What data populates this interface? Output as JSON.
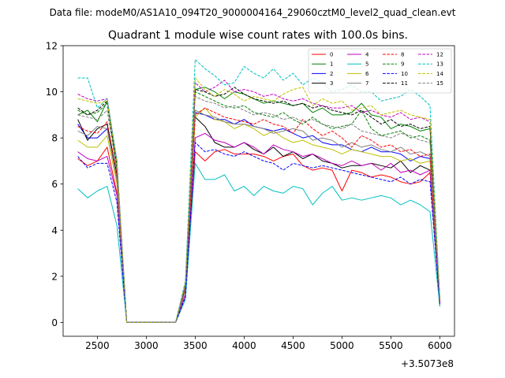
{
  "figure": {
    "suptitle": "Data file: modeM0/AS1A10_094T20_9000004164_29060cztM0_level2_quad_clean.evt"
  },
  "chart_data": {
    "type": "line",
    "title": "Quadrant 1 module wise count rates with 100.0s bins.",
    "xlabel": "",
    "ylabel": "",
    "x_offset_label": "+3.5073e8",
    "xlim": [
      2150,
      6150
    ],
    "ylim": [
      -0.6,
      12
    ],
    "xticks": [
      2500,
      3000,
      3500,
      4000,
      4500,
      5000,
      5500,
      6000
    ],
    "yticks": [
      0,
      2,
      4,
      6,
      8,
      10,
      12
    ],
    "grid": false,
    "legend": {
      "placement": "top-right",
      "columns": 4
    },
    "x": [
      2300,
      2400,
      2500,
      2600,
      2700,
      2800,
      2900,
      3000,
      3100,
      3200,
      3300,
      3400,
      3500,
      3600,
      3700,
      3800,
      3900,
      4000,
      4100,
      4200,
      4300,
      4400,
      4500,
      4600,
      4700,
      4800,
      4900,
      5000,
      5100,
      5200,
      5300,
      5400,
      5500,
      5600,
      5700,
      5800,
      5900,
      6000
    ],
    "series": [
      {
        "name": "0",
        "color": "#ff0000",
        "dash": "solid",
        "values": [
          7.1,
          6.8,
          7.0,
          7.6,
          5.6,
          0,
          0,
          0,
          0,
          0,
          0,
          1.2,
          7.4,
          7.0,
          7.4,
          7.5,
          7.3,
          7.3,
          7.3,
          7.2,
          7.0,
          7.2,
          7.3,
          6.8,
          6.6,
          6.7,
          6.6,
          5.7,
          6.6,
          6.5,
          6.3,
          6.4,
          6.3,
          6.1,
          6.0,
          6.1,
          6.5,
          0.7
        ]
      },
      {
        "name": "1",
        "color": "#008000",
        "dash": "solid",
        "values": [
          9.0,
          9.2,
          8.7,
          9.6,
          6.6,
          0,
          0,
          0,
          0,
          0,
          0,
          1.7,
          10.1,
          10.2,
          10.0,
          9.7,
          10.0,
          9.9,
          9.7,
          9.5,
          9.6,
          9.5,
          9.4,
          9.5,
          9.1,
          9.3,
          9.0,
          9.0,
          9.1,
          9.5,
          9.0,
          8.9,
          8.4,
          8.6,
          8.5,
          8.3,
          8.4,
          1.0
        ]
      },
      {
        "name": "2",
        "color": "#0000ff",
        "dash": "solid",
        "values": [
          8.6,
          8.0,
          8.0,
          8.4,
          6.2,
          0,
          0,
          0,
          0,
          0,
          0,
          1.5,
          9.1,
          9.0,
          8.8,
          8.8,
          8.6,
          8.8,
          8.5,
          8.4,
          8.3,
          8.4,
          8.2,
          8.0,
          8.1,
          7.8,
          7.7,
          7.7,
          7.5,
          7.4,
          7.6,
          7.4,
          7.4,
          7.3,
          7.0,
          7.2,
          7.1,
          0.9
        ]
      },
      {
        "name": "3",
        "color": "#000000",
        "dash": "solid",
        "values": [
          8.8,
          7.9,
          8.4,
          8.6,
          6.4,
          0,
          0,
          0,
          0,
          0,
          0,
          1.4,
          8.9,
          8.5,
          7.8,
          7.6,
          7.6,
          7.8,
          7.5,
          7.3,
          7.6,
          7.2,
          7.4,
          7.1,
          7.3,
          7.0,
          6.9,
          6.7,
          6.8,
          6.8,
          6.9,
          6.8,
          6.7,
          7.0,
          6.5,
          6.8,
          6.6,
          0.9
        ]
      },
      {
        "name": "4",
        "color": "#bf00bf",
        "dash": "solid",
        "values": [
          7.4,
          7.1,
          7.0,
          7.2,
          5.5,
          0,
          0,
          0,
          0,
          0,
          0,
          1.2,
          8.0,
          8.2,
          7.9,
          7.8,
          7.6,
          7.8,
          7.6,
          7.3,
          7.7,
          7.5,
          7.4,
          7.2,
          7.3,
          7.1,
          6.9,
          6.8,
          7.0,
          6.8,
          6.9,
          6.6,
          6.9,
          6.5,
          6.6,
          6.4,
          6.6,
          0.8
        ]
      },
      {
        "name": "5",
        "color": "#00bfbf",
        "dash": "solid",
        "values": [
          5.8,
          5.4,
          5.7,
          5.9,
          4.2,
          0,
          0,
          0,
          0,
          0,
          0,
          1.0,
          6.9,
          6.2,
          6.2,
          6.4,
          5.7,
          5.9,
          5.5,
          5.9,
          5.7,
          5.6,
          5.9,
          5.8,
          5.1,
          5.6,
          5.9,
          5.3,
          5.4,
          5.3,
          5.4,
          5.5,
          5.4,
          5.1,
          5.3,
          5.1,
          4.8,
          0.7
        ]
      },
      {
        "name": "6",
        "color": "#bfbf00",
        "dash": "solid",
        "values": [
          7.9,
          7.6,
          7.6,
          8.1,
          6.0,
          0,
          0,
          0,
          0,
          0,
          0,
          1.4,
          8.9,
          9.3,
          8.8,
          8.7,
          8.4,
          8.6,
          8.4,
          8.1,
          8.3,
          8.0,
          7.8,
          7.9,
          7.7,
          7.6,
          7.5,
          7.3,
          7.5,
          7.4,
          7.3,
          7.2,
          7.2,
          7.0,
          7.1,
          6.9,
          7.0,
          0.9
        ]
      },
      {
        "name": "7",
        "color": "#808080",
        "dash": "solid",
        "values": [
          8.3,
          8.1,
          8.5,
          8.4,
          6.2,
          0,
          0,
          0,
          0,
          0,
          0,
          1.4,
          9.2,
          9.0,
          8.9,
          8.7,
          8.6,
          8.6,
          8.5,
          8.4,
          8.2,
          8.3,
          8.4,
          8.3,
          7.9,
          8.0,
          7.9,
          7.6,
          7.8,
          7.6,
          7.7,
          7.5,
          7.4,
          7.6,
          7.3,
          7.4,
          7.2,
          0.9
        ]
      },
      {
        "name": "8",
        "color": "#ff0000",
        "dash": "dashed",
        "values": [
          8.5,
          8.3,
          8.2,
          8.7,
          6.4,
          0,
          0,
          0,
          0,
          0,
          0,
          1.5,
          9.0,
          9.3,
          9.1,
          8.9,
          8.8,
          8.7,
          8.6,
          8.8,
          8.6,
          8.5,
          8.2,
          8.8,
          8.4,
          8.1,
          8.3,
          8.0,
          7.6,
          8.1,
          7.9,
          7.6,
          7.7,
          7.4,
          7.5,
          7.2,
          7.3,
          0.9
        ]
      },
      {
        "name": "9",
        "color": "#008000",
        "dash": "dashed",
        "values": [
          9.2,
          9.0,
          9.1,
          9.5,
          6.8,
          0,
          0,
          0,
          0,
          0,
          0,
          1.6,
          10.0,
          9.8,
          9.6,
          9.4,
          9.3,
          9.4,
          9.1,
          9.0,
          8.9,
          9.1,
          8.8,
          8.6,
          8.9,
          8.6,
          8.4,
          8.5,
          8.6,
          9.2,
          8.4,
          8.1,
          8.2,
          8.3,
          8.0,
          8.1,
          7.9,
          1.0
        ]
      },
      {
        "name": "10",
        "color": "#0000ff",
        "dash": "dashed",
        "values": [
          7.2,
          6.7,
          6.9,
          6.9,
          5.2,
          0,
          0,
          0,
          0,
          0,
          0,
          1.1,
          7.8,
          7.4,
          7.5,
          7.3,
          7.2,
          7.4,
          7.2,
          7.0,
          6.9,
          6.6,
          6.9,
          6.8,
          6.7,
          6.8,
          6.7,
          6.6,
          6.5,
          6.4,
          6.3,
          6.2,
          6.1,
          6.3,
          6.0,
          6.2,
          6.1,
          0.8
        ]
      },
      {
        "name": "11",
        "color": "#000000",
        "dash": "dashed",
        "values": [
          9.3,
          9.0,
          9.2,
          9.6,
          6.8,
          0,
          0,
          0,
          0,
          0,
          0,
          1.6,
          10.1,
          10.0,
          9.8,
          9.9,
          10.2,
          9.9,
          9.7,
          9.6,
          9.5,
          9.6,
          9.4,
          9.5,
          9.3,
          9.4,
          9.2,
          9.1,
          9.0,
          9.2,
          8.9,
          8.6,
          8.8,
          8.5,
          8.6,
          8.4,
          8.5,
          1.0
        ]
      },
      {
        "name": "12",
        "color": "#bf00bf",
        "dash": "dashed",
        "values": [
          9.9,
          9.7,
          9.6,
          9.7,
          7.0,
          0,
          0,
          0,
          0,
          0,
          0,
          1.7,
          10.4,
          10.0,
          10.2,
          10.5,
          10.0,
          10.1,
          10.0,
          9.8,
          9.9,
          9.7,
          9.6,
          9.7,
          9.5,
          9.4,
          9.3,
          9.3,
          9.4,
          9.1,
          9.2,
          9.0,
          8.9,
          9.1,
          8.8,
          8.9,
          8.7,
          1.0
        ]
      },
      {
        "name": "13",
        "color": "#00bfbf",
        "dash": "dashed",
        "values": [
          10.6,
          10.6,
          9.3,
          9.7,
          7.0,
          0,
          0,
          0,
          0,
          0,
          0,
          1.8,
          11.4,
          11.0,
          10.7,
          10.3,
          10.4,
          11.1,
          10.8,
          10.6,
          11.0,
          10.5,
          10.8,
          10.3,
          10.6,
          10.4,
          10.0,
          10.1,
          10.3,
          10.0,
          10.0,
          9.6,
          9.7,
          9.8,
          10.1,
          9.8,
          9.4,
          1.0
        ]
      },
      {
        "name": "14",
        "color": "#bfbf00",
        "dash": "dashed",
        "values": [
          9.7,
          9.6,
          9.5,
          9.6,
          6.9,
          0,
          0,
          0,
          0,
          0,
          0,
          1.7,
          10.6,
          10.1,
          9.8,
          10.1,
          9.9,
          9.6,
          9.8,
          9.7,
          9.6,
          9.9,
          10.1,
          10.2,
          9.4,
          9.7,
          9.5,
          9.6,
          9.2,
          9.3,
          9.4,
          9.0,
          9.1,
          9.2,
          9.0,
          8.9,
          8.8,
          1.0
        ]
      },
      {
        "name": "15",
        "color": "#808080",
        "dash": "dashed",
        "values": [
          9.0,
          8.9,
          8.8,
          9.2,
          6.6,
          0,
          0,
          0,
          0,
          0,
          0,
          1.6,
          9.8,
          9.6,
          9.5,
          9.3,
          9.4,
          9.2,
          9.0,
          9.1,
          9.0,
          8.8,
          8.9,
          8.7,
          8.8,
          8.6,
          8.5,
          8.4,
          8.6,
          8.3,
          8.2,
          8.1,
          8.0,
          8.2,
          8.1,
          7.9,
          7.8,
          1.0
        ]
      }
    ]
  }
}
